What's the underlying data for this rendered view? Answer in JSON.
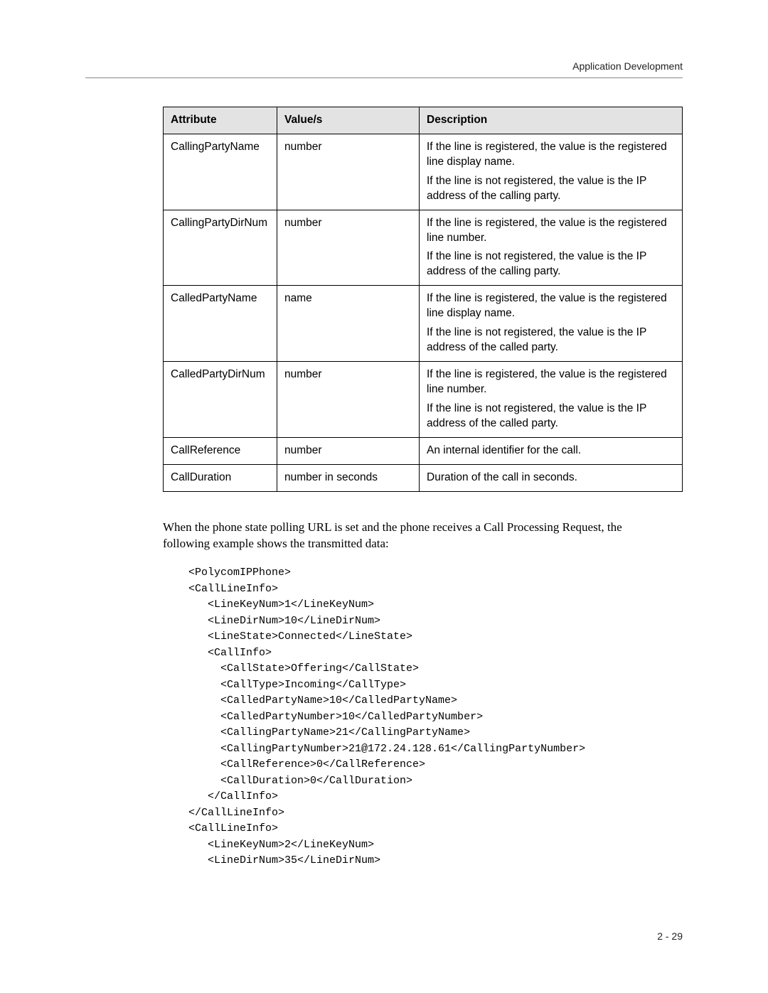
{
  "header": {
    "running_title": "Application Development"
  },
  "table": {
    "headers": {
      "attr": "Attribute",
      "values": "Value/s",
      "desc": "Description"
    },
    "rows": [
      {
        "attr": "CallingPartyName",
        "values": "number",
        "desc1": "If the line is registered, the value is the registered line display name.",
        "desc2": "If the line is not registered, the value is the IP address of the calling party."
      },
      {
        "attr": "CallingPartyDirNum",
        "values": "number",
        "desc1": "If the line is registered, the value is the registered line number.",
        "desc2": "If the line is not registered, the value is the IP address of the calling party."
      },
      {
        "attr": "CalledPartyName",
        "values": "name",
        "desc1": "If the line is registered, the value is the registered line display name.",
        "desc2": "If the line is not registered, the value is the IP address of the called party."
      },
      {
        "attr": "CalledPartyDirNum",
        "values": "number",
        "desc1": "If the line is registered, the value is the registered line number.",
        "desc2": "If the line is not registered, the value is the IP address of the called party."
      },
      {
        "attr": "CallReference",
        "values": "number",
        "desc1": "An internal identifier for the call.",
        "desc2": ""
      },
      {
        "attr": "CallDuration",
        "values": "number in seconds",
        "desc1": "Duration of the call in seconds.",
        "desc2": ""
      }
    ]
  },
  "bodyText": "When the phone state polling URL is set and the phone receives a Call Processing Request, the following example shows the transmitted data:",
  "code": "<PolycomIPPhone>\n<CallLineInfo>\n   <LineKeyNum>1</LineKeyNum>\n   <LineDirNum>10</LineDirNum>\n   <LineState>Connected</LineState>\n   <CallInfo>\n     <CallState>Offering</CallState>\n     <CallType>Incoming</CallType>\n     <CalledPartyName>10</CalledPartyName>\n     <CalledPartyNumber>10</CalledPartyNumber>\n     <CallingPartyName>21</CallingPartyName>\n     <CallingPartyNumber>21@172.24.128.61</CallingPartyNumber>\n     <CallReference>0</CallReference>\n     <CallDuration>0</CallDuration>\n   </CallInfo>\n</CallLineInfo>\n<CallLineInfo>\n   <LineKeyNum>2</LineKeyNum>\n   <LineDirNum>35</LineDirNum>",
  "footer": {
    "page_number": "2 - 29"
  },
  "style": {
    "font_body": "Arial, Helvetica, sans-serif",
    "font_serif": "Book Antiqua, Palatino, Palatino Linotype, Georgia, serif",
    "font_mono": "Courier New, Courier, monospace",
    "background": "#ffffff",
    "text_color": "#000000",
    "header_bg": "#e3e3e3",
    "border_color": "#000000",
    "rule_color": "#888888",
    "table_font_size_pt": 11.5,
    "body_font_size_pt": 12.5,
    "code_font_size_pt": 11
  }
}
